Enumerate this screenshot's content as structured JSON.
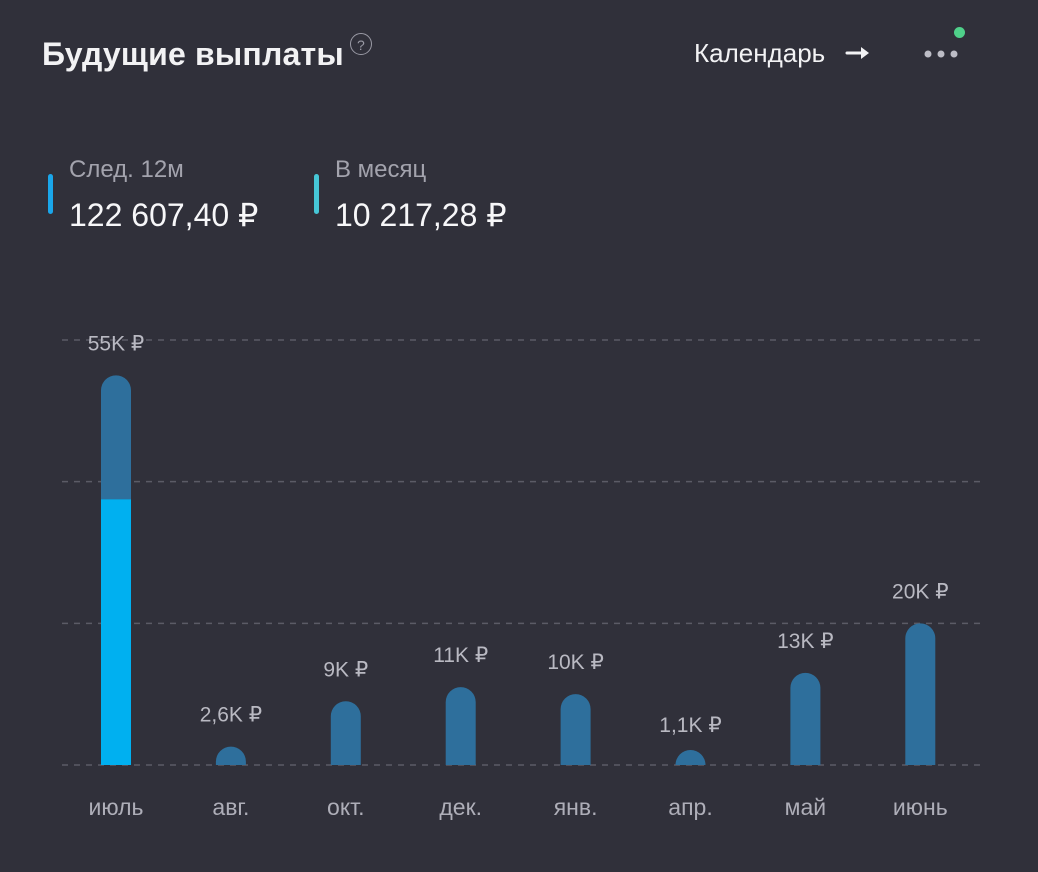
{
  "header": {
    "title": "Будущие выплаты",
    "help_icon": "?",
    "calendar_label": "Календарь"
  },
  "stats": [
    {
      "label": "След. 12м",
      "value": "122 607,40 ₽",
      "color": "#1aa6ea"
    },
    {
      "label": "В месяц",
      "value": "10 217,28 ₽",
      "color": "#46c6d6"
    }
  ],
  "colors": {
    "background": "#30303a",
    "bar": "#2e6f9c",
    "bar_highlight": "#00b0f0",
    "gridline": "#5b5b66",
    "notification_dot": "#4fd08a"
  },
  "chart_data": {
    "type": "bar",
    "categories": [
      "июль",
      "авг.",
      "окт.",
      "дек.",
      "янв.",
      "апр.",
      "май",
      "июнь"
    ],
    "values": [
      55000,
      2600,
      9000,
      11000,
      10000,
      1100,
      13000,
      20000
    ],
    "labels": [
      "55K ₽",
      "2,6K ₽",
      "9K ₽",
      "11K ₽",
      "10K ₽",
      "1,1K ₽",
      "13K ₽",
      "20K ₽"
    ],
    "highlight": {
      "index": 0,
      "value": 37500
    },
    "ylim": [
      0,
      60000
    ],
    "grid": true
  }
}
